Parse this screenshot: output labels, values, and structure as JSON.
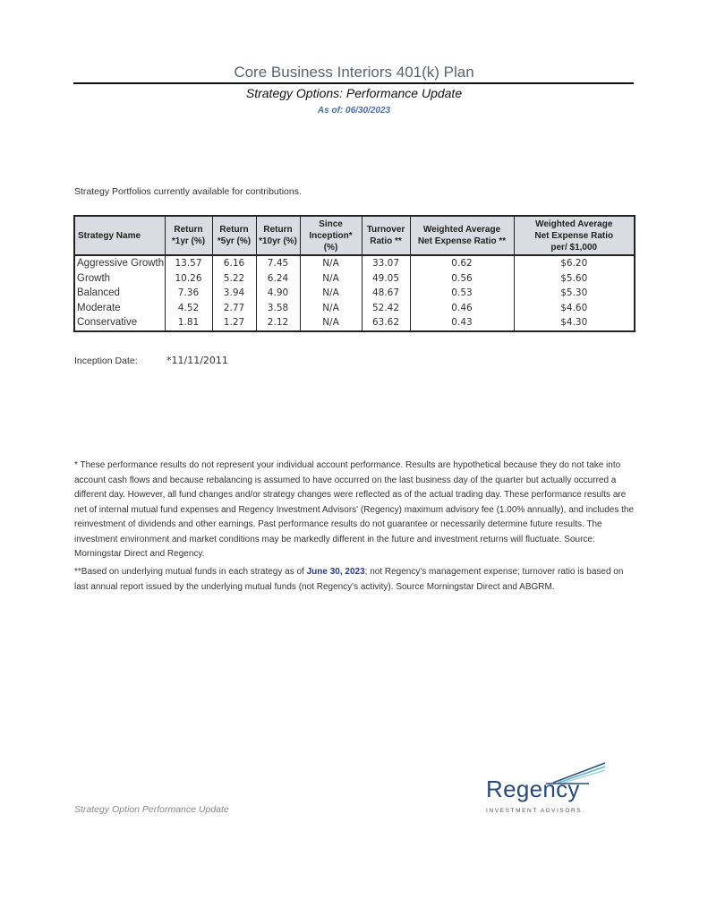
{
  "header": {
    "title": "Core Business Interiors 401(k) Plan",
    "subtitle": "Strategy Options: Performance Update",
    "as_of": "As of: 06/30/2023"
  },
  "intro": "Strategy Portfolios currently available for contributions.",
  "table": {
    "headers": [
      "Strategy Name",
      "Return *1yr (%)",
      "Return *5yr (%)",
      "Return *10yr (%)",
      "Since Inception* (%)",
      "Turnover Ratio **",
      "Weighted Average Net Expense Ratio **",
      "Weighted Average Net Expense Ratio per/ $1,000"
    ],
    "header_lines": [
      [
        "Strategy Name"
      ],
      [
        "Return",
        "*1yr (%)"
      ],
      [
        "Return",
        "*5yr (%)"
      ],
      [
        "Return",
        "*10yr (%)"
      ],
      [
        "Since",
        "Inception* (%)"
      ],
      [
        "Turnover",
        "Ratio **"
      ],
      [
        "Weighted Average",
        "Net Expense Ratio **"
      ],
      [
        "Weighted Average",
        "Net Expense Ratio",
        "per/ $1,000"
      ]
    ],
    "rows": [
      [
        "Aggressive Growth",
        "13.57",
        "6.16",
        "7.45",
        "N/A",
        "33.07",
        "0.62",
        "$6.20"
      ],
      [
        "Growth",
        "10.26",
        "5.22",
        "6.24",
        "N/A",
        "49.05",
        "0.56",
        "$5.60"
      ],
      [
        "Balanced",
        "7.36",
        "3.94",
        "4.90",
        "N/A",
        "48.67",
        "0.53",
        "$5.30"
      ],
      [
        "Moderate",
        "4.52",
        "2.77",
        "3.58",
        "N/A",
        "52.42",
        "0.46",
        "$4.60"
      ],
      [
        "Conservative",
        "1.81",
        "1.27",
        "2.12",
        "N/A",
        "63.62",
        "0.43",
        "$4.30"
      ]
    ]
  },
  "inception": {
    "label": "Inception Date:",
    "value": "*11/11/2011"
  },
  "notes": {
    "note1": "* These performance results do not represent your individual account performance.  Results are hypothetical because they do not take into account cash flows and because rebalancing is assumed to have occurred on the last business day of the quarter but actually occurred a different day. However, all fund changes and/or strategy changes were reflected as of the actual trading day. These performance results are net of internal mutual fund expenses and Regency Investment Advisors' (Regency) maximum advisory fee (1.00% annually), and includes the reinvestment of dividends and other earnings.  Past performance results do not guarantee or necessarily determine future results.  The investment environment and market conditions may be markedly different in the future and investment returns will fluctuate. Source: Morningstar Direct and Regency.",
    "note2_pre": "**Based on underlying mutual funds in each strategy as of ",
    "note2_highlight": "June 30, 2023",
    "note2_post": "; not Regency's management expense; turnover ratio is based on last annual report  issued by the underlying mutual funds (not Regency's activity). Source Morningstar Direct and ABGRM."
  },
  "footer": "Strategy Option Performance Update",
  "logo": {
    "name": "Regency",
    "tagline": "INVESTMENT ADVISORS."
  },
  "colors": {
    "title": "#5a6470",
    "as_of": "#4a6fa8",
    "header_bg": "#d9dce1",
    "logo": "#2b4a78",
    "logo_accent": "#5fb3c9"
  }
}
